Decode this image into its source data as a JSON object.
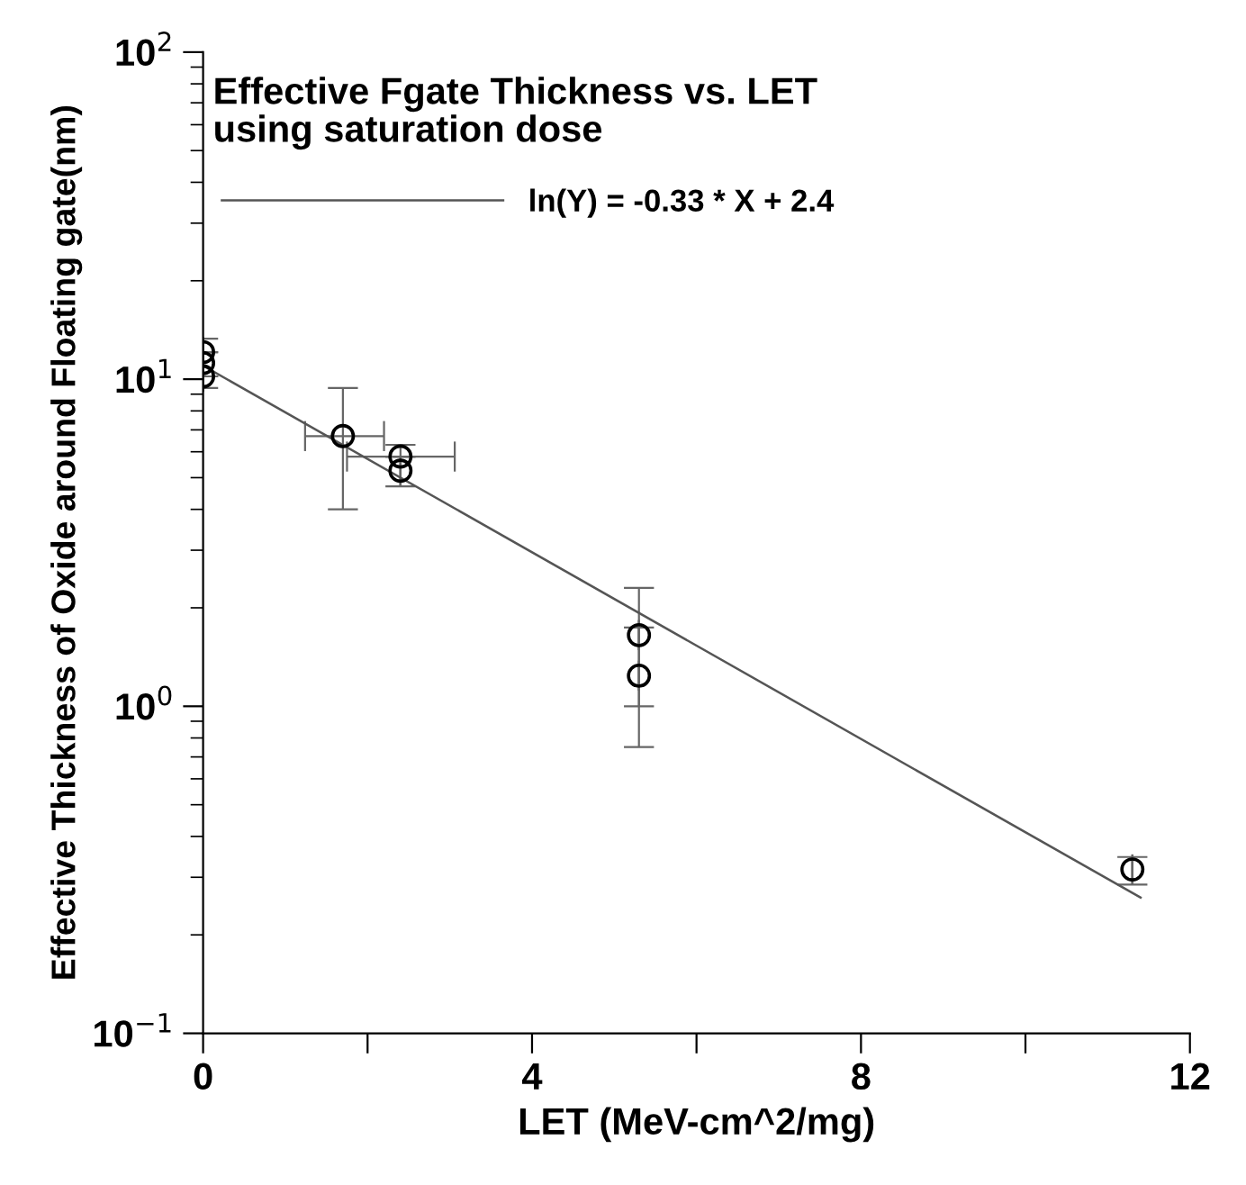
{
  "chart_data": {
    "type": "scatter",
    "title": "Effective Fgate Thickness vs. LET\nusing saturation dose",
    "xlabel": "LET (MeV-cm^2/mg)",
    "ylabel": "Effective Thickness of Oxide around Floating gate(nm)",
    "log": "y",
    "xlim": [
      0,
      12
    ],
    "ylim": [
      0.1,
      100
    ],
    "xticks": [
      0,
      {
        "value": 2,
        "label": null
      },
      4,
      {
        "value": 6,
        "label": null
      },
      8,
      {
        "value": 10,
        "label": null
      },
      12
    ],
    "yticks": [
      {
        "value": 0.1,
        "label": "10$^{−1}$"
      },
      {
        "value": 1,
        "label": "10$^{0}$"
      },
      {
        "value": 10,
        "label": "10$^{1}$"
      },
      {
        "value": 100,
        "label": "10$^{2}$"
      }
    ],
    "grid": false,
    "legend": "top left",
    "marker": "circle",
    "series": [
      {
        "color": "#000000",
        "x": [
          0,
          0,
          0,
          1.7,
          2.4,
          2.4,
          5.3,
          5.3,
          11.3
        ],
        "values": [
          12.1,
          11.2,
          10.2,
          6.7,
          5.8,
          5.25,
          1.65,
          1.24,
          0.317
        ],
        "errors": [
          null,
          [
            9.4,
            13.3
          ],
          null,
          [
            4.0,
            9.4
          ],
          null,
          [
            4.7,
            6.3
          ],
          [
            0.75,
            2.3
          ],
          [
            1.0,
            1.74
          ],
          [
            0.285,
            0.346
          ]
        ],
        "xerrors": [
          null,
          null,
          null,
          [
            1.24,
            2.2
          ],
          [
            1.75,
            3.06
          ],
          null,
          null,
          null,
          null
        ]
      },
      {
        "type": "line",
        "name": "ln(Y) = -0.33 * X + 2.4",
        "color": "#555555",
        "x": [
          0,
          11.4
        ],
        "values": [
          11.0,
          0.26
        ],
        "marker": "none",
        "line_style": "solid"
      }
    ]
  }
}
